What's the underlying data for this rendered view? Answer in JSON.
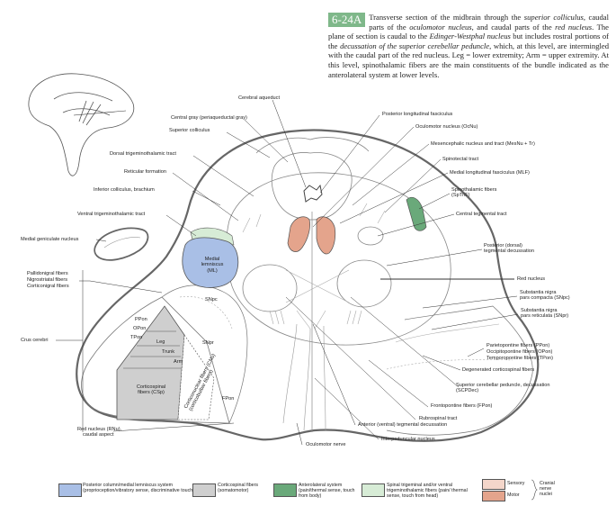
{
  "figure": {
    "number": "6-24A",
    "caption_html": "Transverse section of the midbrain through the <i>superior colliculus</i>, caudal parts of the <i>oculomotor nucleus</i>, and caudal parts of the <i>red nucleus</i>. The plane of section is caudal to the <i>Edinger-Westphal nucleus</i> but includes rostral portions of the <i>decussation of the superior cerebellar peduncle</i>, which, at this level, are intermingled with the caudal part of the red nucleus. Leg = lower extremity; Arm = upper extremity. At this level, spinothalamic fibers are the main constituents of the bundle indicated as the anterolateral system at lower levels."
  },
  "labels_left": {
    "cerebral_aqueduct": "Cerebral aqueduct",
    "central_gray": "Central gray (periaqueductal gray)",
    "superior_colliculus": "Superior colliculus",
    "dorsal_trigeminothalamic": "Dorsal trigeminothalamic tract",
    "reticular_formation": "Reticular formation",
    "inferior_colliculus_brachium": "Inferior colliculus, brachium",
    "ventral_trigeminothalamic": "Ventral trigeminothalamic tract",
    "medial_geniculate": "Medial geniculate nucleus",
    "pallidonigral": "Pallidonigral fibers",
    "nigrostriatal": "Nigrostriatal fibers",
    "corticonigral": "Corticonigral fibers",
    "crus_cerebri": "Crus cerebri",
    "red_nucleus_caudal_1": "Red nucleus (RNu),",
    "red_nucleus_caudal_2": "caudal aspect"
  },
  "labels_right": {
    "posterior_longitudinal_fasciculus": "Posterior longitudinal fasciculus",
    "oculomotor_nucleus": "Oculomotor nucleus (OcNu)",
    "mesencephalic_nucleus": "Mesencephalic nucleus and tract (MesNu + Tr)",
    "spinotectal": "Spinotectal tract",
    "mlf": "Medial longitudinal fasciculus (MLF)",
    "spinothalamic_1": "Spinothalamic fibers",
    "spinothalamic_2": "(SpThF)",
    "central_tegmental": "Central tegmental tract",
    "posterior_tegmental_1": "Posterior (dorsal)",
    "posterior_tegmental_2": "tegmental decussation",
    "red_nucleus": "Red nucleus",
    "snpc_1": "Substantia nigra",
    "snpc_2": "pars compacta (SNpc)",
    "snpr_1": "Substantia nigra",
    "snpr_2": "pars reticulata (SNpr)",
    "ppon": "Parietopontine fibers (PPon)",
    "opon": "Occipitopontine fibers (OPon)",
    "tpon": "Temporopontine fibers (TPon)",
    "degenerated_corticospinal": "Degenerated corticospinal fibers",
    "scp_dec_1": "Superior cerebellar peduncle, decussation",
    "scp_dec_2": "(SCPDec)",
    "frontopontine": "Frontopontine fibers (FPon)",
    "rubrospinal": "Rubrospinal tract",
    "anterior_tegmental": "Anterior (ventral) tegmental decussation",
    "interpeduncular": "Interpeduncular nucleus",
    "oculomotor_nerve": "Oculomotor nerve"
  },
  "inner_labels": {
    "ml_1": "Medial",
    "ml_2": "lemniscus",
    "ml_3": "(ML)",
    "snpc": "SNpc",
    "snpr": "SNpr",
    "ppon": "PPon",
    "opon": "OPon",
    "tpon": "TPon",
    "leg": "Leg",
    "trunk": "Trunk",
    "arm": "Arm",
    "csp_1": "Corticospinal",
    "csp_2": "fibers (CSp)",
    "cnu_1": "Corticonuclear fibers (CNu)",
    "cnu_2": "(corticobulbar fibers)",
    "fpon": "FPon"
  },
  "legend": {
    "ml": "Posterior column/medial lemniscus system (proprioception/vibratory sense, discriminative touch)",
    "csp": "Corticospinal fibers (somatomotor)",
    "als": "Anterolateral system (pain/thermal sense, touch from body)",
    "trig": "Spinal trigeminal and/or ventral trigeminothalamic fibers (pain/ thermal sense, touch from head)",
    "sensory": "Sensory",
    "motor": "Motor",
    "cranial_nerve_nuclei": "Cranial nerve nuclei"
  },
  "colors": {
    "ml_blue": "#a9bfe6",
    "csp_gray": "#cfcfcf",
    "als_green": "#6aa97a",
    "trig_light_green": "#d7ecd6",
    "sensory_pink": "#f4d6ca",
    "motor_salmon": "#e4a48c",
    "figure_number_green": "#7fb88a"
  }
}
